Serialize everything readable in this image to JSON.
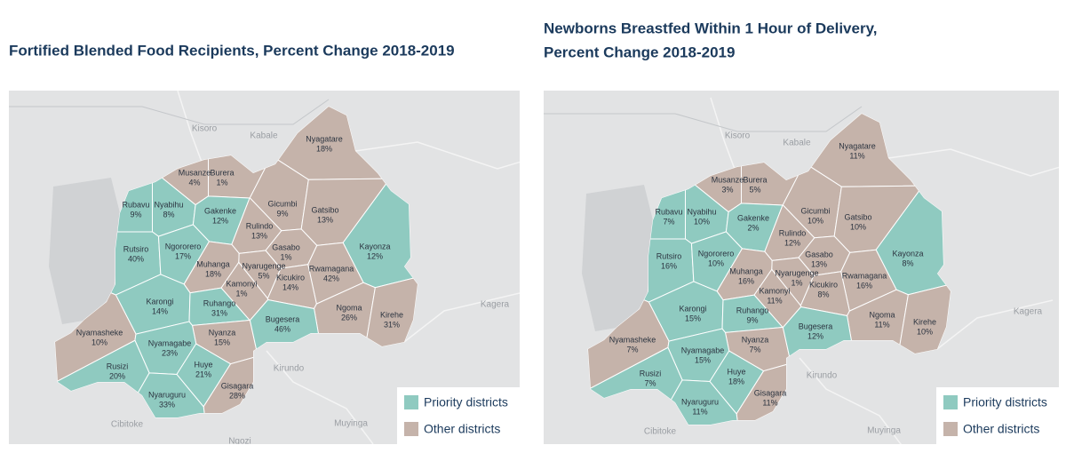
{
  "maps": [
    {
      "title_lines": [
        "Fortified Blended Food Recipients, Percent Change 2018-2019"
      ],
      "values": [
        "18%",
        "4%",
        "1%",
        "9%",
        "8%",
        "12%",
        "9%",
        "13%",
        "13%",
        "12%",
        "40%",
        "17%",
        "1%",
        "18%",
        "5%",
        "42%",
        "14%",
        "1%",
        "14%",
        "31%",
        "26%",
        "31%",
        "10%",
        "15%",
        "46%",
        "23%",
        "21%",
        "20%",
        "28%",
        "33%"
      ]
    },
    {
      "title_lines": [
        "Newborns Breastfed Within 1 Hour of Delivery,",
        "Percent Change 2018-2019"
      ],
      "values": [
        "11%",
        "3%",
        "5%",
        "7%",
        "10%",
        "2%",
        "10%",
        "10%",
        "12%",
        "8%",
        "16%",
        "10%",
        "13%",
        "16%",
        "1%",
        "16%",
        "8%",
        "11%",
        "15%",
        "9%",
        "11%",
        "10%",
        "7%",
        "7%",
        "12%",
        "15%",
        "18%",
        "7%",
        "11%",
        "11%"
      ]
    }
  ],
  "districts": [
    {
      "name": "Nyagatare",
      "priority": false
    },
    {
      "name": "Musanze",
      "priority": false
    },
    {
      "name": "Burera",
      "priority": false
    },
    {
      "name": "Rubavu",
      "priority": true
    },
    {
      "name": "Nyabihu",
      "priority": true
    },
    {
      "name": "Gakenke",
      "priority": true
    },
    {
      "name": "Gicumbi",
      "priority": false
    },
    {
      "name": "Gatsibo",
      "priority": false
    },
    {
      "name": "Rulindo",
      "priority": false
    },
    {
      "name": "Kayonza",
      "priority": true
    },
    {
      "name": "Rutsiro",
      "priority": true
    },
    {
      "name": "Ngororero",
      "priority": true
    },
    {
      "name": "Gasabo",
      "priority": false
    },
    {
      "name": "Muhanga",
      "priority": false
    },
    {
      "name": "Nyarugenge",
      "priority": false
    },
    {
      "name": "Rwamagana",
      "priority": false
    },
    {
      "name": "Kicukiro",
      "priority": false
    },
    {
      "name": "Kamonyi",
      "priority": false
    },
    {
      "name": "Karongi",
      "priority": true
    },
    {
      "name": "Ruhango",
      "priority": true
    },
    {
      "name": "Ngoma",
      "priority": false
    },
    {
      "name": "Kirehe",
      "priority": false
    },
    {
      "name": "Nyamasheke",
      "priority": false
    },
    {
      "name": "Nyanza",
      "priority": false
    },
    {
      "name": "Bugesera",
      "priority": true
    },
    {
      "name": "Nyamagabe",
      "priority": true
    },
    {
      "name": "Huye",
      "priority": true
    },
    {
      "name": "Rusizi",
      "priority": true
    },
    {
      "name": "Gisagara",
      "priority": false
    },
    {
      "name": "Nyaruguru",
      "priority": true
    }
  ],
  "legend": {
    "priority": "Priority districts",
    "other": "Other districts"
  },
  "basemap_labels": [
    "Kisoro",
    "Kabale",
    "Kagera",
    "Kirundo",
    "Muyinga",
    "Ngozi",
    "Cibitoke"
  ]
}
